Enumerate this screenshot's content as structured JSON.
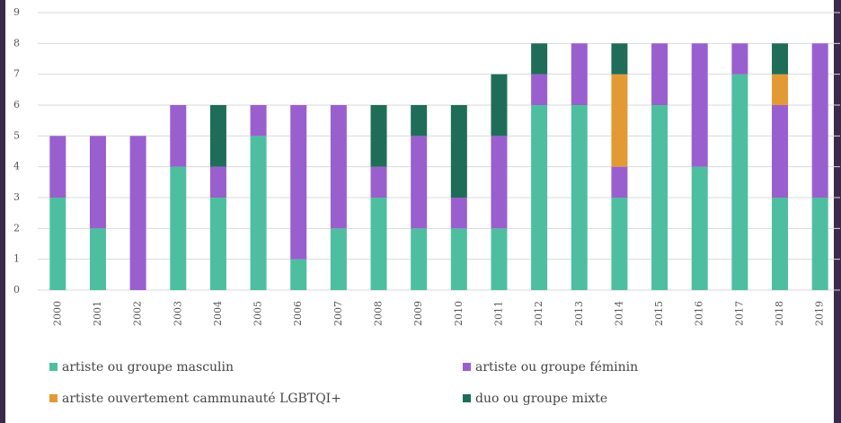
{
  "chart_data": {
    "type": "stacked-bar",
    "categories": [
      "2000",
      "2001",
      "2002",
      "2003",
      "2004",
      "2005",
      "2006",
      "2007",
      "2008",
      "2009",
      "2010",
      "2011",
      "2012",
      "2013",
      "2014",
      "2015",
      "2016",
      "2017",
      "2018",
      "2019"
    ],
    "series": [
      {
        "name": "artiste ou groupe masculin",
        "color": "#4dbfa0",
        "values": [
          3,
          2,
          0,
          4,
          3,
          5,
          1,
          2,
          3,
          2,
          2,
          2,
          6,
          6,
          3,
          6,
          4,
          7,
          3,
          3
        ]
      },
      {
        "name": "artiste ou groupe féminin",
        "color": "#9a5fcf",
        "values": [
          2,
          3,
          5,
          2,
          1,
          1,
          5,
          4,
          1,
          3,
          1,
          3,
          1,
          2,
          1,
          2,
          4,
          1,
          3,
          5
        ]
      },
      {
        "name": "artiste ouvertement cammunauté LGBTQI+",
        "color": "#e39a35",
        "values": [
          0,
          0,
          0,
          0,
          0,
          0,
          0,
          0,
          0,
          0,
          0,
          0,
          0,
          0,
          3,
          0,
          0,
          0,
          1,
          0
        ]
      },
      {
        "name": "duo ou groupe mixte",
        "color": "#1f6d58",
        "values": [
          0,
          0,
          0,
          0,
          2,
          0,
          0,
          0,
          2,
          1,
          3,
          2,
          1,
          0,
          1,
          0,
          0,
          0,
          1,
          0
        ]
      }
    ],
    "ylim": [
      0,
      9
    ],
    "yticks": [
      0,
      1,
      2,
      3,
      4,
      5,
      6,
      7,
      8,
      9
    ],
    "grid": true,
    "legend": "bottom"
  }
}
